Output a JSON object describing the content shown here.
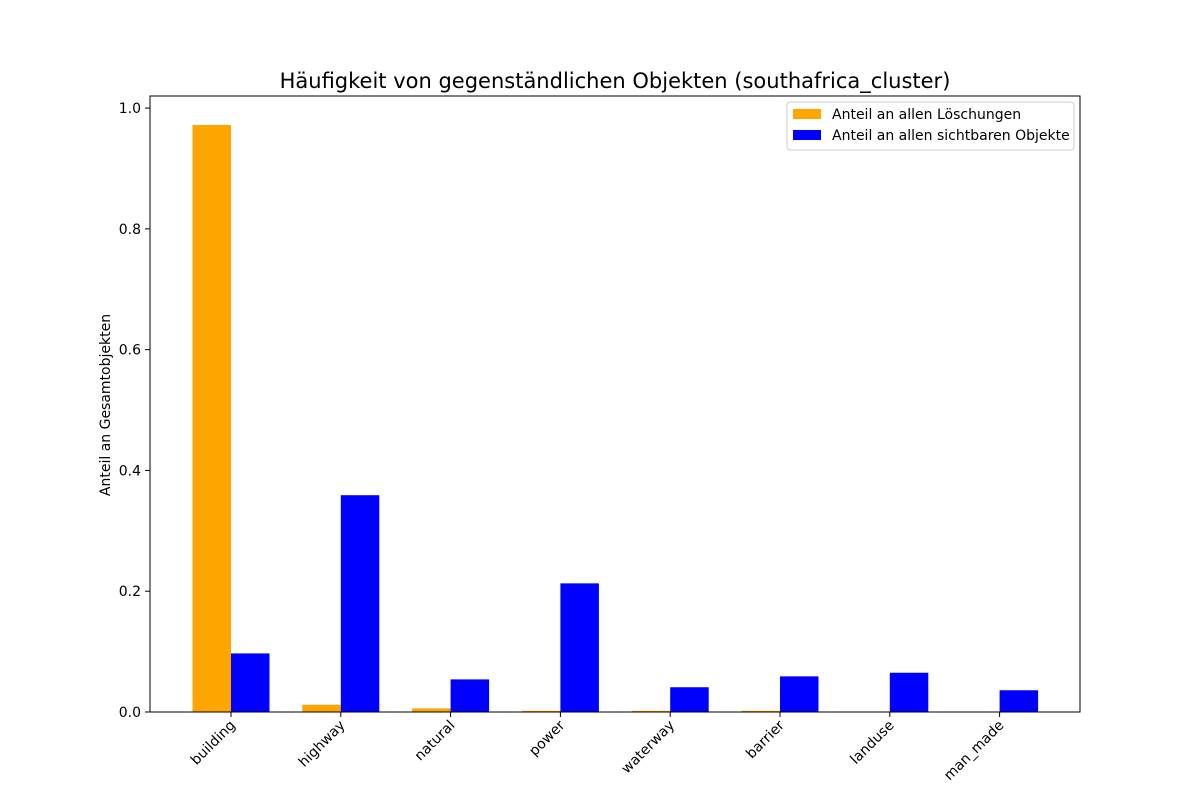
{
  "chart_data": {
    "type": "bar",
    "title": "Häufigkeit von gegenständlichen Objekten (southafrica_cluster)",
    "xlabel": "",
    "ylabel": "Anteil an Gesamtobjekten",
    "categories": [
      "building",
      "highway",
      "natural",
      "power",
      "waterway",
      "barrier",
      "landuse",
      "man_made"
    ],
    "series": [
      {
        "name": "Anteil an allen Löschungen",
        "color": "#ffa500",
        "values": [
          0.972,
          0.012,
          0.006,
          0.002,
          0.002,
          0.002,
          0.0,
          0.0
        ]
      },
      {
        "name": "Anteil an allen sichtbaren Objekte",
        "color": "#0000ff",
        "values": [
          0.097,
          0.359,
          0.054,
          0.213,
          0.041,
          0.059,
          0.065,
          0.036
        ]
      }
    ],
    "ylim": [
      0,
      1.02
    ],
    "yticks": [
      "0.0",
      "0.2",
      "0.4",
      "0.6",
      "0.8",
      "1.0"
    ],
    "grid": false,
    "legend_position": "top-right"
  }
}
